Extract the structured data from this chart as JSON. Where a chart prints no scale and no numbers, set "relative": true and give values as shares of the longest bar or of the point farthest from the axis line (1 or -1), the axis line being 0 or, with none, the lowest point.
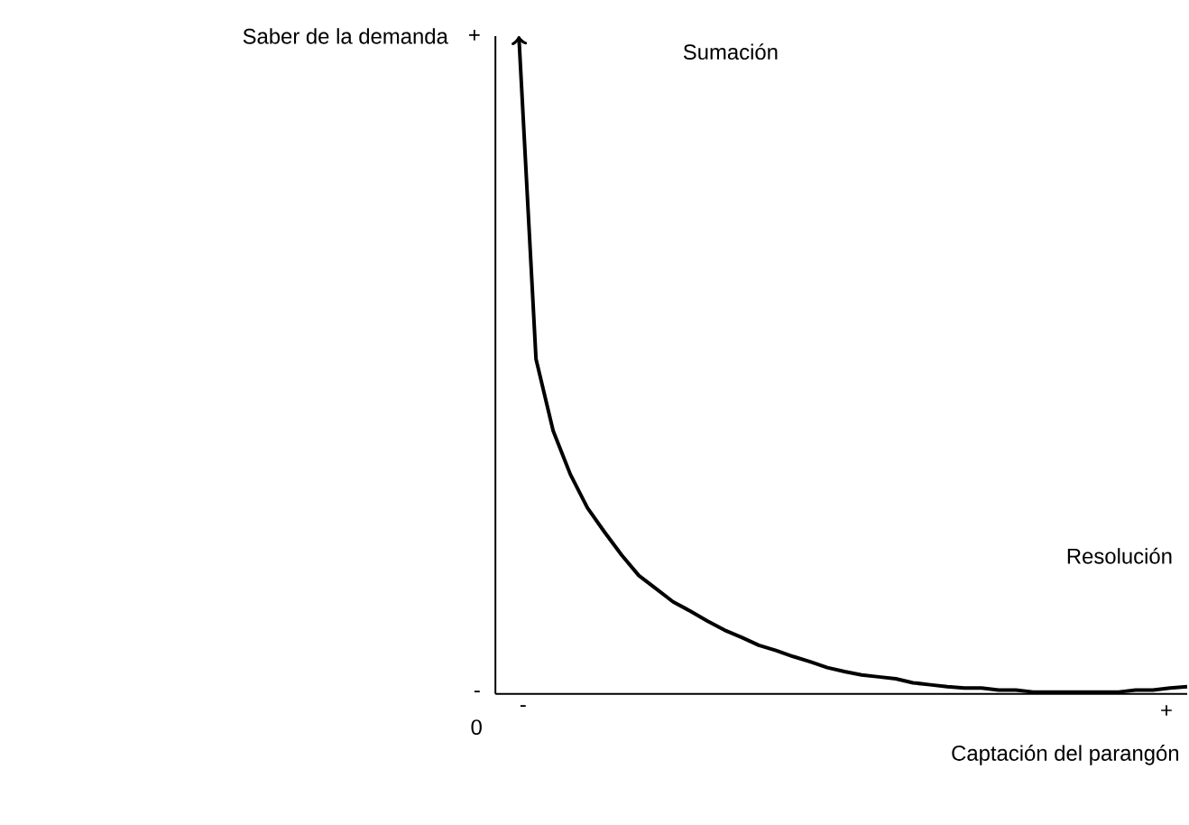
{
  "chart_data": {
    "type": "line",
    "relative": true,
    "xlabel": "Captación del parangón",
    "ylabel": "Saber de la demanda",
    "categories": [
      null,
      null,
      null,
      null,
      null,
      null,
      null,
      null,
      null,
      null,
      null,
      null,
      null,
      null,
      null,
      null,
      null,
      null,
      null,
      null,
      null,
      null,
      null,
      null,
      null,
      null,
      null,
      null,
      null,
      null,
      null,
      null,
      null,
      null,
      null,
      null,
      null,
      null,
      null,
      null
    ],
    "series": [
      {
        "color": "#000000",
        "values": [
          1.0,
          0.509,
          0.4,
          0.334,
          0.283,
          0.246,
          0.211,
          0.18,
          0.16,
          0.14,
          0.126,
          0.111,
          0.097,
          0.086,
          0.074,
          0.066,
          0.057,
          0.049,
          0.04,
          0.034,
          0.029,
          0.026,
          0.023,
          0.017,
          0.014,
          0.011,
          0.009,
          0.009,
          0.006,
          0.006,
          0.003,
          0.003,
          0.003,
          0.003,
          0.003,
          0.003,
          0.006,
          0.006,
          0.009,
          0.011
        ]
      }
    ],
    "annotations": [
      "Sumación",
      "Resolución",
      "0",
      "-",
      "+",
      "-",
      "+"
    ],
    "marker": "none",
    "line_style": "solid"
  }
}
